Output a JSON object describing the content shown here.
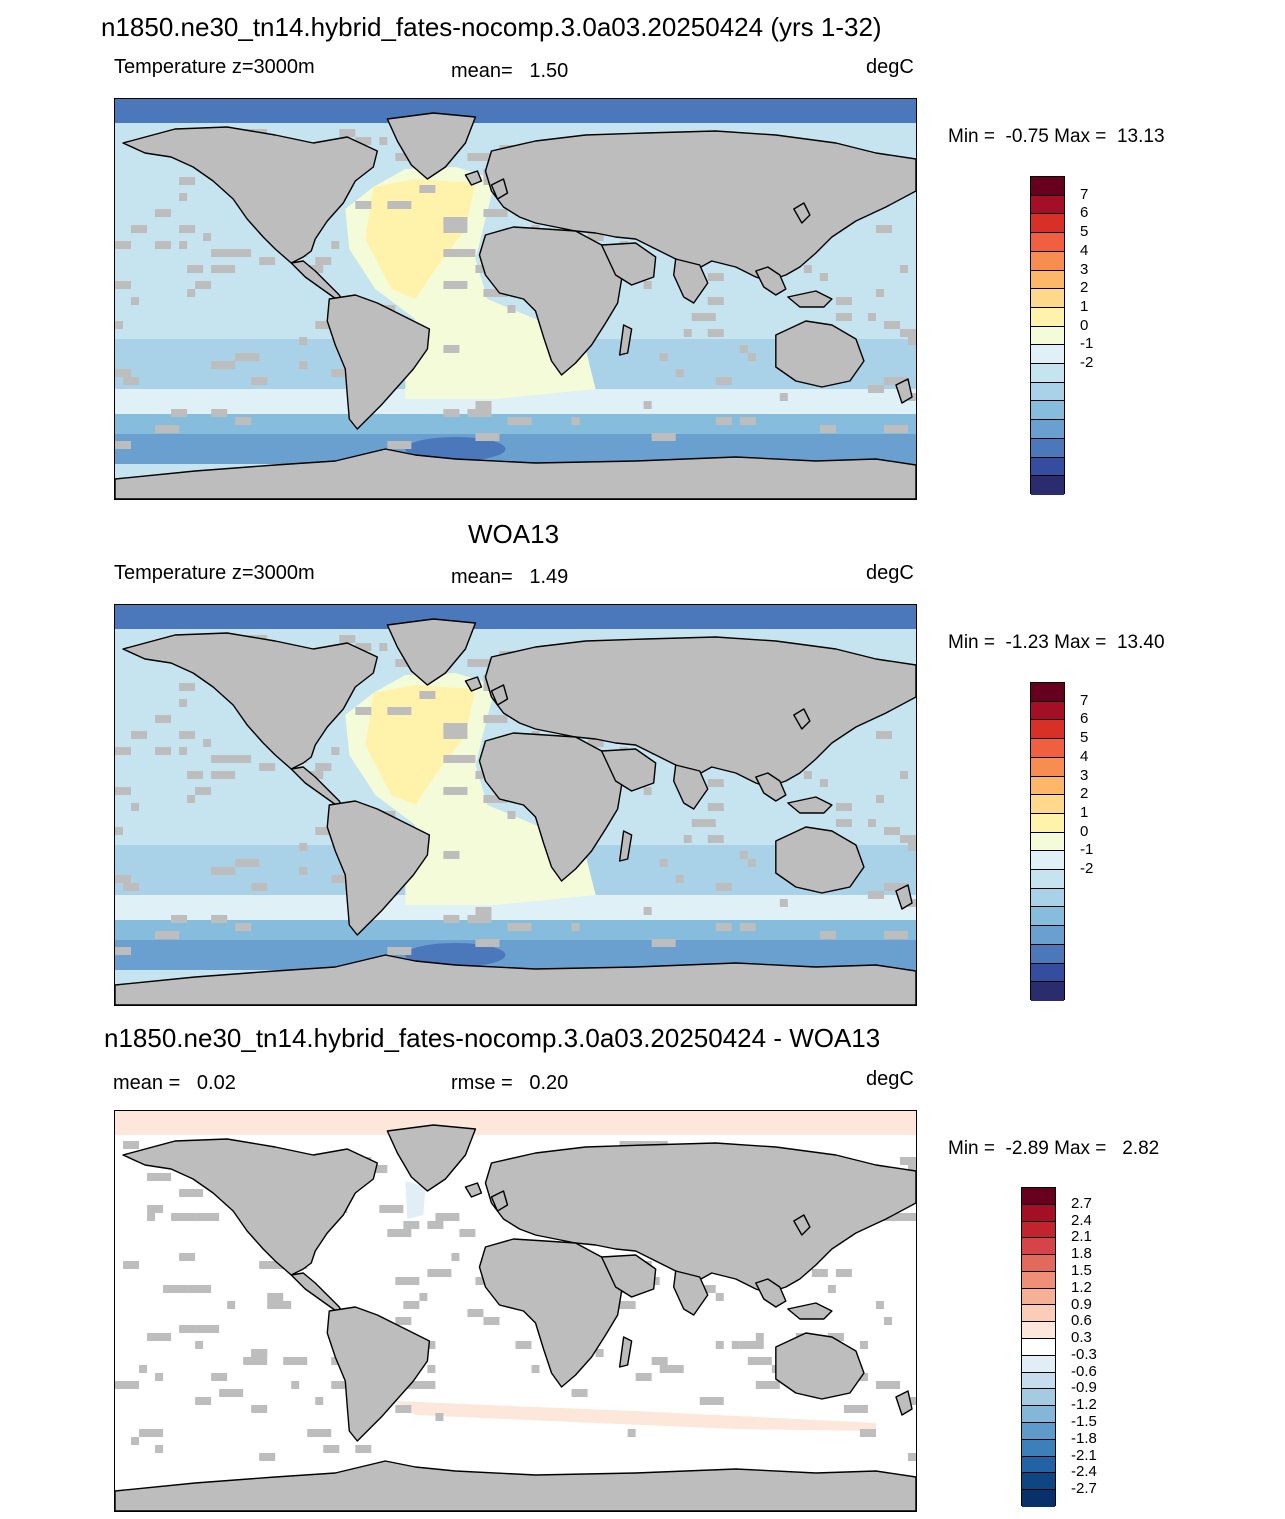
{
  "panels": [
    {
      "title": "n1850.ne30_tn14.hybrid_fates-nocomp.3.0a03.20250424 (yrs 1-32)",
      "left_label": "Temperature z=3000m",
      "center_label": "mean=   1.50",
      "units": "degC",
      "minmax": "Min =  -0.75 Max =  13.13",
      "kind": "field"
    },
    {
      "title": "WOA13",
      "left_label": "Temperature z=3000m",
      "center_label": "mean=   1.49",
      "units": "degC",
      "minmax": "Min =  -1.23 Max =  13.40",
      "kind": "field"
    },
    {
      "title": "n1850.ne30_tn14.hybrid_fates-nocomp.3.0a03.20250424 - WOA13",
      "left_label": "mean =   0.02",
      "center_label": "rmse =   0.20",
      "units": "degC",
      "minmax": "Min =  -2.89 Max =   2.82",
      "kind": "diff"
    }
  ],
  "colorbars": {
    "field": {
      "labels": [
        "7",
        "6",
        "5",
        "4",
        "3",
        "2",
        "1",
        "0",
        "-1",
        "-2"
      ],
      "colors": [
        "#67001f",
        "#a50f26",
        "#d73027",
        "#f06040",
        "#f88d52",
        "#fdb768",
        "#fed98b",
        "#fff2aa",
        "#f4fbd8",
        "#dff0f6",
        "#c6e4f0",
        "#a9d2e8",
        "#86bddc",
        "#6aa0cf",
        "#4a78bb",
        "#344d9e",
        "#2a2c6e"
      ]
    },
    "diff": {
      "labels": [
        "2.7",
        "2.4",
        "2.1",
        "1.8",
        "1.5",
        "1.2",
        "0.9",
        "0.6",
        "0.3",
        "-0.3",
        "-0.6",
        "-0.9",
        "-1.2",
        "-1.5",
        "-1.8",
        "-2.1",
        "-2.4",
        "-2.7"
      ],
      "colors": [
        "#67001f",
        "#a50f26",
        "#c0252d",
        "#d6444a",
        "#e26a5c",
        "#ef8f75",
        "#f6b096",
        "#fbcdb8",
        "#fde6da",
        "#ffffff",
        "#e2eef6",
        "#c6dded",
        "#a5cbe3",
        "#84b6d8",
        "#5f9bca",
        "#3d7fb9",
        "#2163a4",
        "#0e4683",
        "#08306b"
      ]
    }
  },
  "map_colors": {
    "land": "#bdbdbd",
    "coast": "#000000"
  }
}
